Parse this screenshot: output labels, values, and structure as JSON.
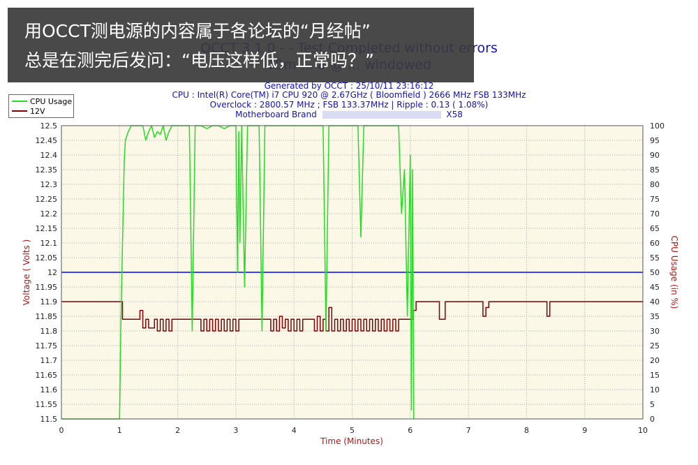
{
  "overlay": {
    "line1": "用OCCT测电源的内容属于各论坛的“月经帖”",
    "line2": "总是在测完后发问：“电压这样低，正常吗？”"
  },
  "header": {
    "title": "OCCT 3.1.0 - - Test Completed without errors",
    "subtitle": "10m ... 8 @ ... windowed",
    "generated": "Generated by OCCT : 25/10/11 23:16:12",
    "cpu": "CPU : Intel(R) Core(TM) i7 CPU 920 @ 2.67GHz ( Bloomfield ) 2666 MHz FSB 133MHz",
    "overclock": "Overclock : 2800.57 MHz ; FSB 133.37MHz | Ripple : 0.13 ( 1.08%)",
    "mb_label": "Motherboard Brand",
    "mb_chipset": "X58"
  },
  "legend": {
    "items": [
      "CPU Usage",
      "12V"
    ]
  },
  "colors": {
    "cpu": "#22dd22",
    "v12": "#800000",
    "ref": "#0000ff",
    "plot_bg": "#fcf8e8",
    "grid": "#a8a8a8"
  },
  "chart_data": {
    "type": "line",
    "xlabel": "Time (Minutes)",
    "ylabel": "Voltage ( Volts )",
    "y2label": "CPU Usage (in %)",
    "xlim": [
      0,
      10
    ],
    "ylim": [
      11.5,
      12.5
    ],
    "y2lim": [
      0,
      100
    ],
    "xticks": [
      0,
      1,
      2,
      3,
      4,
      5,
      6,
      7,
      8,
      9,
      10
    ],
    "yticks": [
      11.5,
      11.55,
      11.6,
      11.65,
      11.7,
      11.75,
      11.8,
      11.85,
      11.9,
      11.95,
      12,
      12.05,
      12.1,
      12.15,
      12.2,
      12.25,
      12.3,
      12.35,
      12.4,
      12.45,
      12.5
    ],
    "y2ticks": [
      0,
      5,
      10,
      15,
      20,
      25,
      30,
      35,
      40,
      45,
      50,
      55,
      60,
      65,
      70,
      75,
      80,
      85,
      90,
      95,
      100
    ],
    "reference_line": 12.0,
    "legend_position": "top-left",
    "grid": true,
    "series": [
      {
        "name": "12V",
        "axis": "left",
        "x": [
          0,
          1.0,
          1.05,
          1.3,
          1.35,
          1.4,
          1.45,
          1.5,
          1.6,
          1.65,
          1.7,
          1.75,
          1.8,
          1.85,
          1.9,
          1.95,
          2.0,
          2.05,
          2.1,
          2.2,
          2.3,
          2.4,
          2.45,
          2.5,
          2.55,
          2.6,
          2.65,
          2.7,
          2.75,
          2.8,
          2.85,
          2.9,
          2.95,
          3.0,
          3.05,
          3.1,
          3.5,
          3.6,
          3.65,
          3.7,
          3.75,
          3.8,
          3.85,
          3.9,
          3.95,
          4.0,
          4.05,
          4.1,
          4.15,
          4.2,
          4.3,
          4.35,
          4.4,
          4.45,
          4.5,
          4.55,
          4.6,
          4.65,
          4.7,
          4.75,
          4.8,
          4.85,
          4.9,
          4.95,
          5.0,
          5.05,
          5.1,
          5.15,
          5.2,
          5.25,
          5.3,
          5.35,
          5.4,
          5.45,
          5.5,
          5.55,
          5.6,
          5.65,
          5.7,
          5.75,
          5.8,
          5.85,
          5.9,
          5.95,
          6.0,
          6.05,
          6.1,
          6.45,
          6.5,
          6.55,
          6.6,
          7.2,
          7.25,
          7.3,
          7.35,
          8.3,
          8.35,
          8.4,
          10
        ],
        "values": [
          11.9,
          11.9,
          11.84,
          11.84,
          11.87,
          11.81,
          11.84,
          11.81,
          11.84,
          11.8,
          11.84,
          11.8,
          11.84,
          11.8,
          11.84,
          11.84,
          11.84,
          11.84,
          11.84,
          11.84,
          11.84,
          11.8,
          11.84,
          11.8,
          11.84,
          11.8,
          11.84,
          11.8,
          11.84,
          11.8,
          11.84,
          11.8,
          11.84,
          11.8,
          11.84,
          11.84,
          11.84,
          11.8,
          11.84,
          11.8,
          11.85,
          11.81,
          11.84,
          11.8,
          11.84,
          11.8,
          11.84,
          11.8,
          11.84,
          11.84,
          11.84,
          11.8,
          11.85,
          11.8,
          11.84,
          11.8,
          11.88,
          11.8,
          11.84,
          11.8,
          11.84,
          11.8,
          11.84,
          11.8,
          11.84,
          11.8,
          11.84,
          11.8,
          11.84,
          11.8,
          11.84,
          11.8,
          11.84,
          11.8,
          11.84,
          11.8,
          11.84,
          11.8,
          11.84,
          11.8,
          11.84,
          11.84,
          11.84,
          11.84,
          11.84,
          11.87,
          11.9,
          11.9,
          11.84,
          11.84,
          11.9,
          11.9,
          11.85,
          11.88,
          11.9,
          11.9,
          11.85,
          11.9,
          11.9
        ]
      },
      {
        "name": "CPU Usage",
        "axis": "right",
        "x": [
          0,
          1.0,
          1.02,
          1.05,
          1.08,
          1.1,
          1.15,
          1.2,
          1.3,
          1.4,
          1.45,
          1.5,
          1.55,
          1.6,
          1.65,
          1.7,
          1.75,
          1.8,
          1.85,
          1.9,
          1.95,
          2.2,
          2.25,
          2.3,
          2.35,
          2.4,
          2.5,
          2.6,
          2.7,
          2.8,
          2.9,
          3.0,
          3.03,
          3.05,
          3.07,
          3.1,
          3.15,
          3.2,
          3.3,
          3.4,
          3.45,
          3.5,
          3.55,
          3.6,
          3.65,
          3.7,
          4.5,
          4.55,
          4.6,
          4.65,
          4.7,
          5.0,
          5.1,
          5.15,
          5.2,
          5.3,
          5.5,
          5.7,
          5.8,
          5.85,
          5.9,
          5.95,
          6.0,
          6.02,
          6.04,
          6.06
        ],
        "values": [
          0,
          0,
          30,
          60,
          88,
          95,
          98,
          100,
          100,
          100,
          95,
          98,
          100,
          96,
          98,
          97,
          100,
          95,
          98,
          100,
          100,
          100,
          30,
          100,
          100,
          100,
          99,
          100,
          100,
          99,
          100,
          100,
          50,
          98,
          60,
          100,
          45,
          100,
          100,
          100,
          30,
          100,
          100,
          100,
          100,
          100,
          100,
          30,
          100,
          100,
          100,
          100,
          100,
          62,
          100,
          100,
          100,
          100,
          100,
          70,
          85,
          35,
          90,
          3,
          85,
          0
        ]
      }
    ]
  }
}
